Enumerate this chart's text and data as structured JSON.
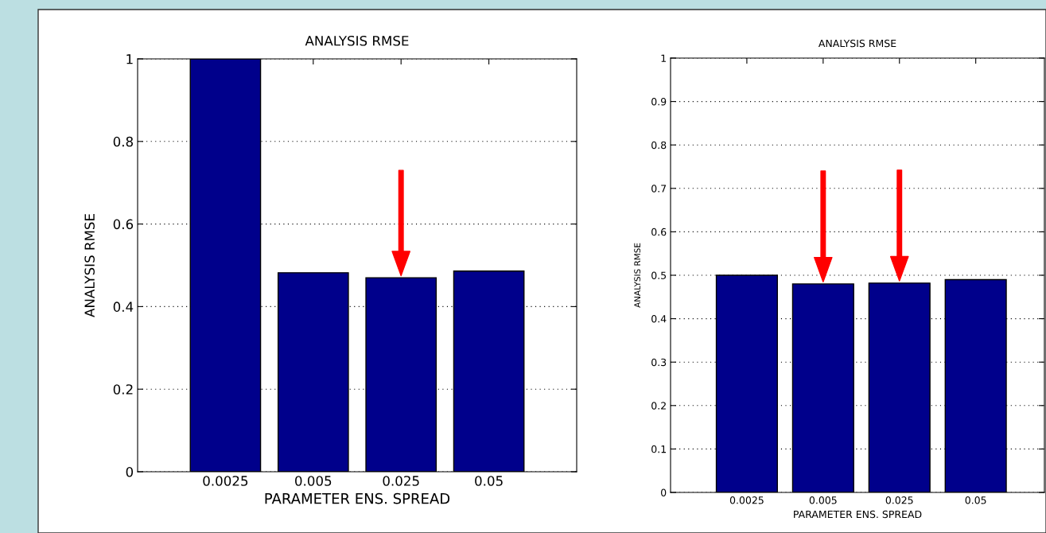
{
  "chart_data": [
    {
      "type": "bar",
      "title": "ANALYSIS RMSE",
      "xlabel": "PARAMETER ENS. SPREAD",
      "ylabel": "ANALYSIS RMSE",
      "categories": [
        "0.0025",
        "0.005",
        "0.025",
        "0.05"
      ],
      "values": [
        1.0,
        0.482,
        0.47,
        0.486
      ],
      "color": "#00008b",
      "ylim": [
        0,
        1
      ],
      "yticks": [
        0,
        0.2,
        0.4,
        0.6,
        0.8,
        1
      ],
      "grid": "y",
      "annotations": [
        {
          "x": "0.025"
        }
      ]
    },
    {
      "type": "bar",
      "title": "ANALYSIS RMSE",
      "xlabel": "PARAMETER ENS. SPREAD",
      "ylabel": "ANALYSIS RMSE",
      "categories": [
        "0.0025",
        "0.005",
        "0.025",
        "0.05"
      ],
      "values": [
        0.5,
        0.48,
        0.482,
        0.49
      ],
      "color": "#00008b",
      "ylim": [
        0,
        1
      ],
      "yticks": [
        0,
        0.1,
        0.2,
        0.3,
        0.4,
        0.5,
        0.6,
        0.7,
        0.8,
        0.9,
        1
      ],
      "grid": "y",
      "annotations": [
        {
          "x": "0.005"
        },
        {
          "x": "0.025"
        }
      ]
    }
  ]
}
